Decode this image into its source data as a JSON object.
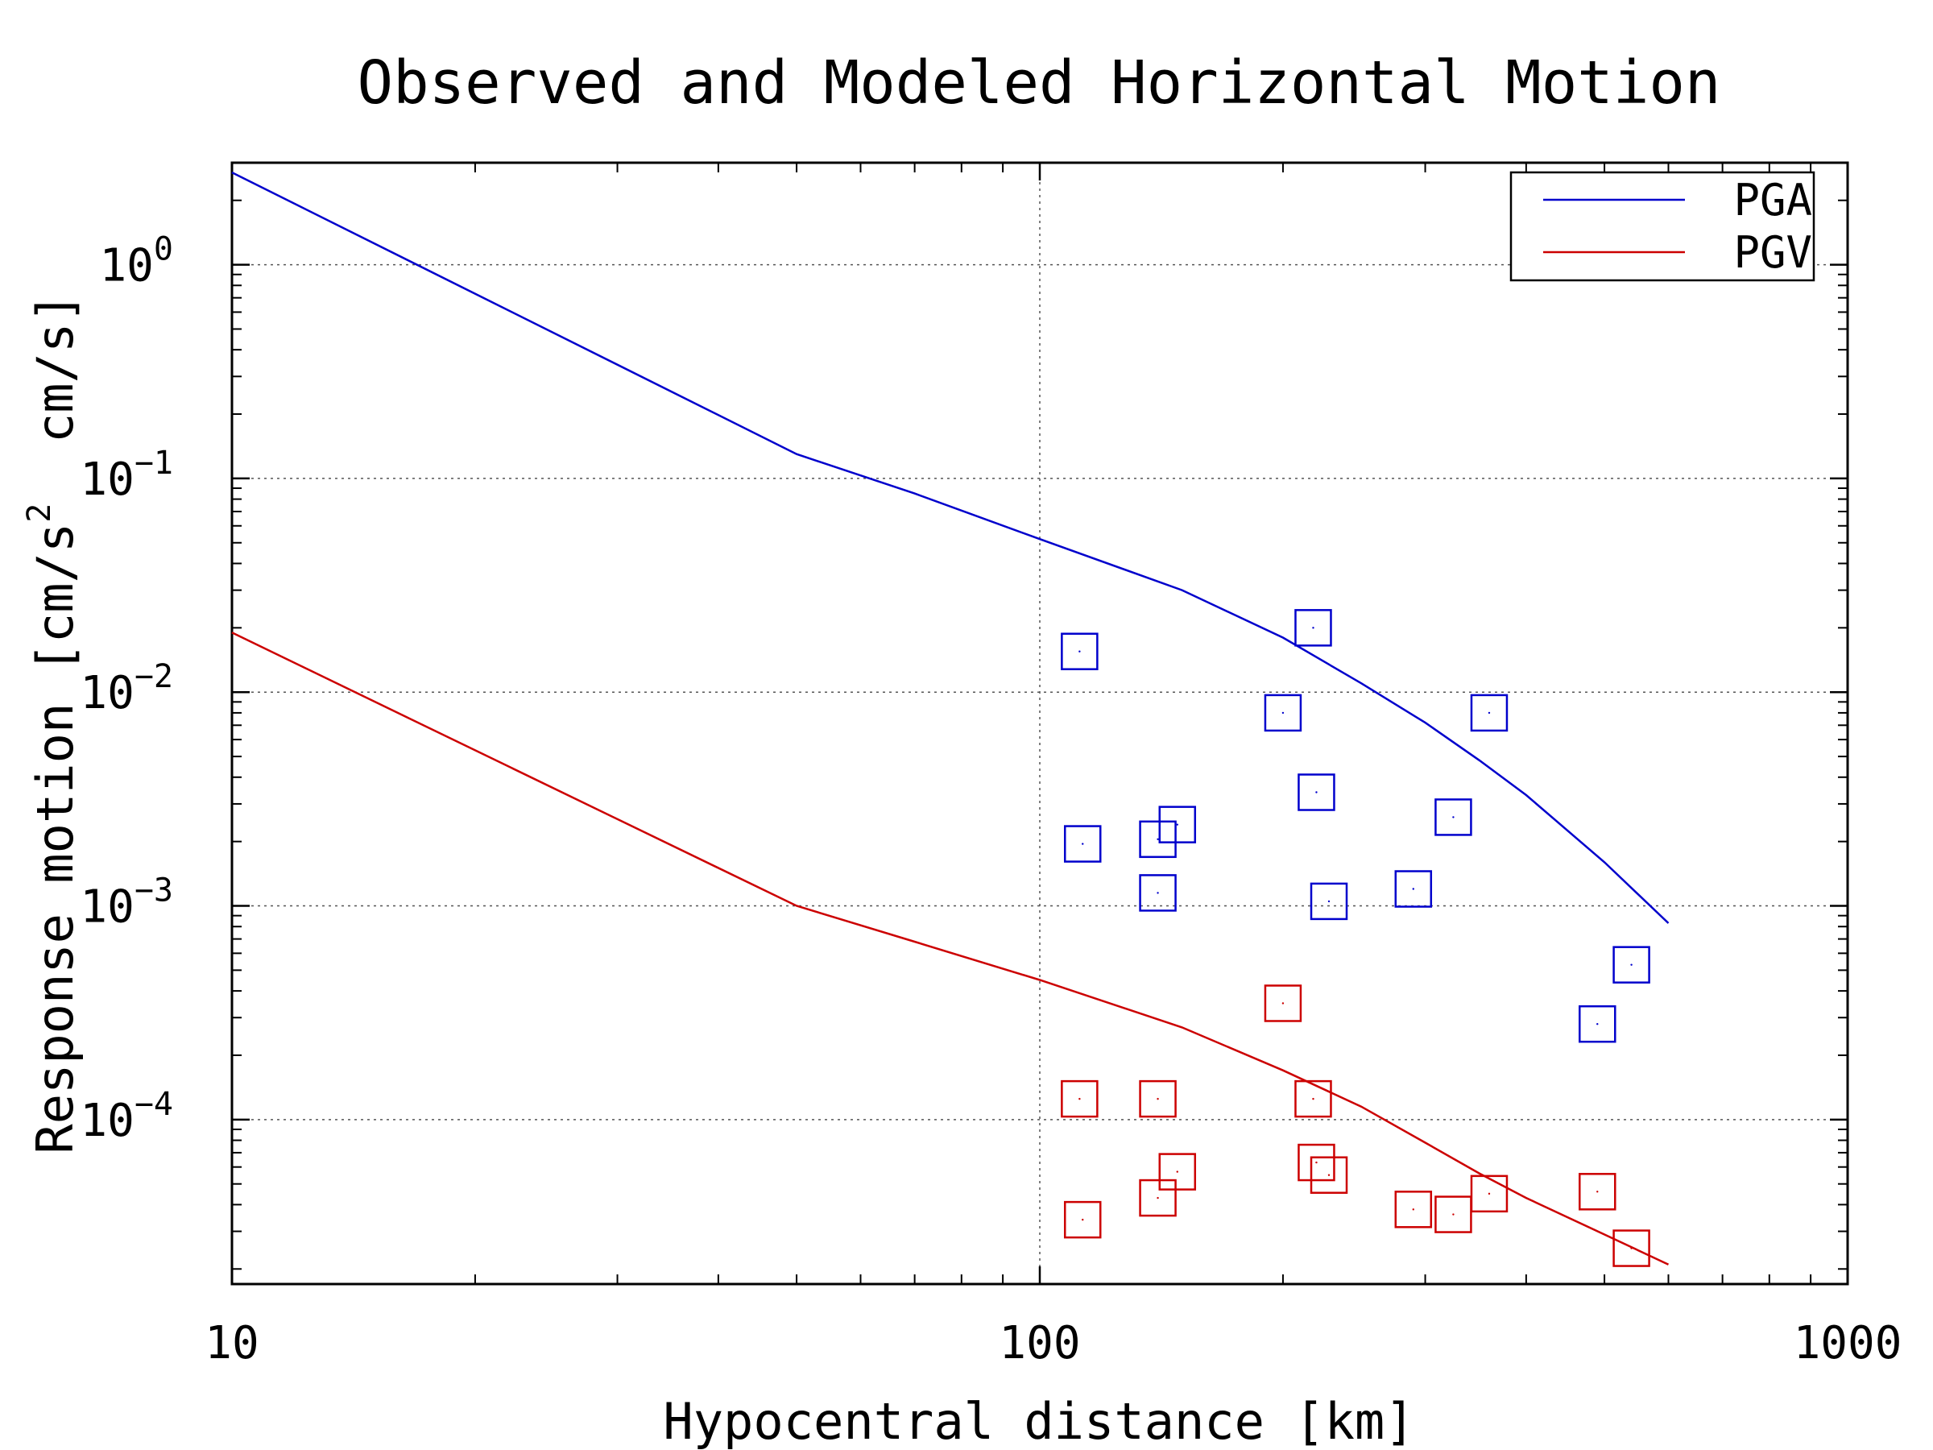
{
  "chart_data": {
    "type": "scatter",
    "title": "Observed and Modeled Horizontal Motion",
    "xlabel": "Hypocentral distance [km]",
    "ylabel_parts": [
      "Response motion [cm/s",
      "2",
      "  cm/s]"
    ],
    "xscale": "log",
    "yscale": "log",
    "xlim": [
      10,
      1000
    ],
    "ylim": [
      1.7e-05,
      3.0
    ],
    "x_ticks": [
      {
        "value": 10,
        "label": "10"
      },
      {
        "value": 100,
        "label": "100"
      },
      {
        "value": 1000,
        "label": "1000"
      }
    ],
    "y_ticks": [
      {
        "value": 1,
        "base": "10",
        "exp": "0"
      },
      {
        "value": 0.1,
        "base": "10",
        "exp": "−1"
      },
      {
        "value": 0.01,
        "base": "10",
        "exp": "−2"
      },
      {
        "value": 0.001,
        "base": "10",
        "exp": "−3"
      },
      {
        "value": 0.0001,
        "base": "10",
        "exp": "−4"
      }
    ],
    "grid": true,
    "legend_position": "top-right",
    "series": [
      {
        "name": "PGA",
        "kind": "line",
        "color": "#0000cc",
        "x": [
          10,
          50,
          70,
          100,
          150,
          200,
          250,
          300,
          350,
          400,
          500,
          600
        ],
        "y": [
          2.7,
          0.13,
          0.085,
          0.052,
          0.03,
          0.018,
          0.011,
          0.0072,
          0.0048,
          0.0033,
          0.0016,
          0.00083
        ]
      },
      {
        "name": "PGV",
        "kind": "line",
        "color": "#cc0000",
        "x": [
          10,
          50,
          70,
          100,
          150,
          200,
          250,
          300,
          350,
          400,
          500,
          600
        ],
        "y": [
          0.019,
          0.001,
          0.00068,
          0.00045,
          0.00027,
          0.00017,
          0.000115,
          7.8e-05,
          5.6e-05,
          4.3e-05,
          2.9e-05,
          2.1e-05
        ]
      },
      {
        "name": "",
        "kind": "points",
        "color": "#0000cc",
        "x": [
          112,
          113,
          140,
          140,
          148,
          200,
          218,
          220,
          228,
          290,
          325,
          360,
          490,
          540
        ],
        "y": [
          0.0155,
          0.00195,
          0.00205,
          0.00115,
          0.0024,
          0.008,
          0.02,
          0.0034,
          0.00105,
          0.0012,
          0.0026,
          0.008,
          0.00028,
          0.00053
        ]
      },
      {
        "name": "",
        "kind": "points",
        "color": "#cc0000",
        "x": [
          112,
          113,
          140,
          140,
          148,
          200,
          218,
          220,
          228,
          290,
          325,
          360,
          490,
          540
        ],
        "y": [
          0.000125,
          3.4e-05,
          0.000125,
          4.3e-05,
          5.7e-05,
          0.00035,
          0.000125,
          6.3e-05,
          5.5e-05,
          3.8e-05,
          3.6e-05,
          4.5e-05,
          4.6e-05,
          2.5e-05
        ]
      }
    ]
  }
}
